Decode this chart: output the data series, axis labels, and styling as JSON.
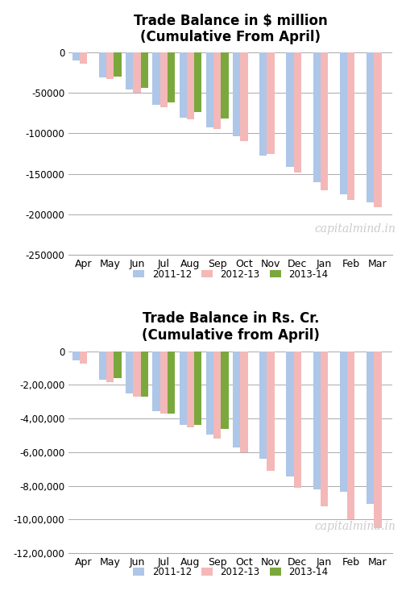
{
  "months": [
    "Apr",
    "May",
    "Jun",
    "Jul",
    "Aug",
    "Sep",
    "Oct",
    "Nov",
    "Dec",
    "Jan",
    "Feb",
    "Mar"
  ],
  "usd_2011_12": [
    -10200,
    -31000,
    -46000,
    -65000,
    -81000,
    -93000,
    -104000,
    -127000,
    -141000,
    -160000,
    -175000,
    -185000
  ],
  "usd_2012_13": [
    -14000,
    -33000,
    -50000,
    -68000,
    -83000,
    -95000,
    -110000,
    -125000,
    -148000,
    -170000,
    -182000,
    -191000
  ],
  "usd_2013_14": [
    null,
    -30000,
    -44000,
    -62000,
    -74000,
    -82000,
    null,
    null,
    null,
    null,
    null,
    null
  ],
  "inr_2011_12": [
    -55000,
    -170000,
    -252000,
    -355000,
    -440000,
    -495000,
    -570000,
    -640000,
    -745000,
    -820000,
    -835000,
    -910000
  ],
  "inr_2012_13": [
    -75000,
    -185000,
    -270000,
    -370000,
    -450000,
    -520000,
    -600000,
    -710000,
    -810000,
    -920000,
    -1000000,
    -1050000
  ],
  "inr_2013_14": [
    null,
    -160000,
    -270000,
    -370000,
    -440000,
    -460000,
    null,
    null,
    null,
    null,
    null,
    null
  ],
  "color_2011_12": "#aec6e8",
  "color_2012_13": "#f4b8b8",
  "color_2013_14": "#7ba83c",
  "title1": "Trade Balance in $ million",
  "subtitle1": "(Cumulative From April)",
  "title2": "Trade Balance in Rs. Cr.",
  "subtitle2": "(Cumulative from April)",
  "watermark": "capitalmind.in",
  "legend_labels": [
    "2011-12",
    "2012-13",
    "2013-14"
  ],
  "ylim1": [
    -250000,
    5000
  ],
  "ylim2": [
    -1200000,
    30000
  ],
  "yticks1": [
    0,
    -50000,
    -100000,
    -150000,
    -200000,
    -250000
  ],
  "yticks2": [
    0,
    -200000,
    -400000,
    -600000,
    -800000,
    -1000000,
    -1200000
  ]
}
